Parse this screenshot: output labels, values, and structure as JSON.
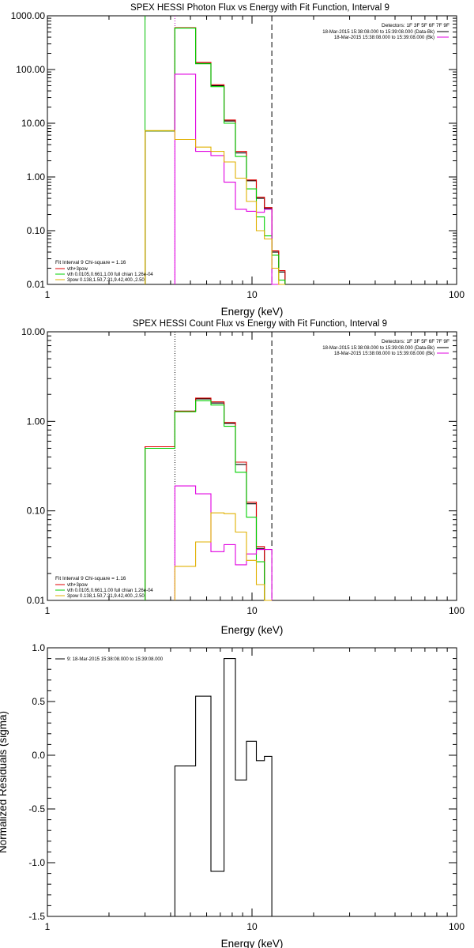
{
  "chart_data": [
    {
      "type": "line",
      "title": "SPEX HESSI Photon Flux vs Energy with Fit Function, Interval 9",
      "xlabel": "Energy (keV)",
      "ylabel": "",
      "xscale": "log",
      "yscale": "log",
      "xlim": [
        1,
        100
      ],
      "ylim": [
        0.01,
        1000
      ],
      "xticks": [
        "1",
        "10",
        "100"
      ],
      "yticks": [
        "0.01",
        "0.10",
        "1.00",
        "10.00",
        "100.00",
        "1000.00"
      ],
      "vlines": [
        {
          "x": 3.0,
          "style": "solid",
          "color": "#00c000"
        },
        {
          "x": 4.2,
          "style": "dotted",
          "color": "#c000c0"
        },
        {
          "x": 12.5,
          "style": "dashed",
          "color": "#000000"
        }
      ],
      "edges": [
        3.0,
        4.2,
        5.3,
        6.3,
        7.3,
        8.3,
        9.4,
        10.5,
        11.5,
        12.5,
        13.5,
        14.5
      ],
      "series": [
        {
          "name": "",
          "color": "#000000",
          "values": [
            7.2,
            600,
            130,
            50,
            11,
            2.8,
            0.85,
            0.4,
            0.26,
            0.04,
            0.017
          ]
        },
        {
          "name": "",
          "color": "#e00000",
          "values": [
            7.2,
            600,
            135,
            52,
            11.5,
            3.0,
            0.88,
            0.42,
            0.27,
            0.042,
            0.018
          ]
        },
        {
          "name": "",
          "color": "#00d000",
          "values": [
            7.2,
            590,
            128,
            48,
            10,
            2.4,
            0.6,
            0.18,
            0.08,
            0.035,
            0.012
          ]
        },
        {
          "name": "",
          "color": "#e000e0",
          "values": [
            null,
            82,
            3.0,
            2.5,
            0.8,
            0.25,
            0.23,
            0.22,
            0.25,
            0.008,
            null
          ]
        },
        {
          "name": "",
          "color": "#e0b000",
          "values": [
            7.3,
            5.0,
            3.6,
            3.0,
            1.9,
            0.95,
            0.35,
            0.1,
            0.07,
            0.02,
            0.005
          ]
        }
      ],
      "detectors": "Detectors: 1F 3F 5F 6F 7F 9F",
      "legend_right": [
        {
          "text": "18-Mar-2015 15:38:08.000 to 15:39:08.000 (Data-Bk)",
          "color": "#000000"
        },
        {
          "text": "18-Mar-2015 15:38:08.000 to 15:39:08.000 (Bk)",
          "color": "#e000e0"
        }
      ],
      "legend_title": "Fit Interval 9   Chi-square = 1.16",
      "legend_left": [
        {
          "text": "vth+3pow",
          "color": "#e00000"
        },
        {
          "text": "vth 0.0105,0.661,1.00  full chian 1.26e-04",
          "color": "#00d000"
        },
        {
          "text": "3pow 0.138,1.50,7.31,9.42,400.,2.50",
          "color": "#e0b000"
        }
      ]
    },
    {
      "type": "line",
      "title": "SPEX HESSI Count Flux vs Energy with Fit Function, Interval 9",
      "xlabel": "Energy (keV)",
      "ylabel": "",
      "xscale": "log",
      "yscale": "log",
      "xlim": [
        1,
        100
      ],
      "ylim": [
        0.01,
        10
      ],
      "xticks": [
        "1",
        "10",
        "100"
      ],
      "yticks": [
        "0.01",
        "0.10",
        "1.00",
        "10.00"
      ],
      "vlines": [
        {
          "x": 4.2,
          "style": "dotted",
          "color": "#000000"
        },
        {
          "x": 12.5,
          "style": "dashed",
          "color": "#000000"
        }
      ],
      "edges": [
        3.0,
        4.2,
        5.3,
        6.3,
        7.3,
        8.3,
        9.4,
        10.5,
        11.5,
        12.5
      ],
      "series": [
        {
          "name": "",
          "color": "#000000",
          "values": [
            0.52,
            1.3,
            1.78,
            1.6,
            0.95,
            0.33,
            0.12,
            0.038,
            0.01
          ]
        },
        {
          "name": "",
          "color": "#e00000",
          "values": [
            0.52,
            1.3,
            1.82,
            1.65,
            0.97,
            0.35,
            0.125,
            0.04,
            0.01
          ]
        },
        {
          "name": "",
          "color": "#00d000",
          "values": [
            0.5,
            1.28,
            1.7,
            1.52,
            0.88,
            0.27,
            0.085,
            0.027,
            0.01
          ]
        },
        {
          "name": "",
          "color": "#e000e0",
          "values": [
            null,
            0.19,
            0.155,
            0.035,
            0.042,
            0.025,
            0.033,
            0.037,
            0.037
          ]
        },
        {
          "name": "",
          "color": "#e0b000",
          "values": [
            null,
            0.024,
            0.045,
            0.095,
            0.093,
            0.058,
            0.028,
            0.015,
            0.006
          ]
        }
      ],
      "detectors": "Detectors: 1F 3F 5F 6F 7F 9F",
      "legend_right": [
        {
          "text": "18-Mar-2015 15:38:08.000 to 15:39:08.000 (Data-Bk)",
          "color": "#000000"
        },
        {
          "text": "18-Mar-2015 15:38:08.000 to 15:39:08.000 (Bk)",
          "color": "#e000e0"
        }
      ],
      "legend_title": "Fit Interval 9   Chi-square = 1.16",
      "legend_left": [
        {
          "text": "vth+3pow",
          "color": "#e00000"
        },
        {
          "text": "vth 0.0105,0.661,1.00  full chian 1.26e-04",
          "color": "#00d000"
        },
        {
          "text": "3pow 0.138,1.50,7.31,9.42,400.,2.50",
          "color": "#e0b000"
        }
      ]
    },
    {
      "type": "line",
      "title": "",
      "xlabel": "Energy (keV)",
      "ylabel": "Normalized Residuals (sigma)",
      "xscale": "log",
      "yscale": "linear",
      "xlim": [
        1,
        100
      ],
      "ylim": [
        -1.5,
        1.0
      ],
      "xticks": [
        "1",
        "10",
        "100"
      ],
      "yticks": [
        "-1.5",
        "-1.0",
        "-0.5",
        "0.0",
        "0.5",
        "1.0"
      ],
      "edges": [
        4.2,
        5.3,
        6.3,
        7.3,
        8.3,
        9.4,
        10.5,
        11.5,
        12.5
      ],
      "series": [
        {
          "name": "",
          "color": "#000000",
          "values": [
            -0.1,
            0.55,
            -1.08,
            0.9,
            -0.23,
            0.13,
            -0.05,
            -0.01
          ]
        }
      ],
      "legend_right": [],
      "legend_left": [
        {
          "text": "9: 18-Mar-2015 15:38:08.000 to 15:39:08.000",
          "color": "#000000"
        }
      ]
    }
  ]
}
